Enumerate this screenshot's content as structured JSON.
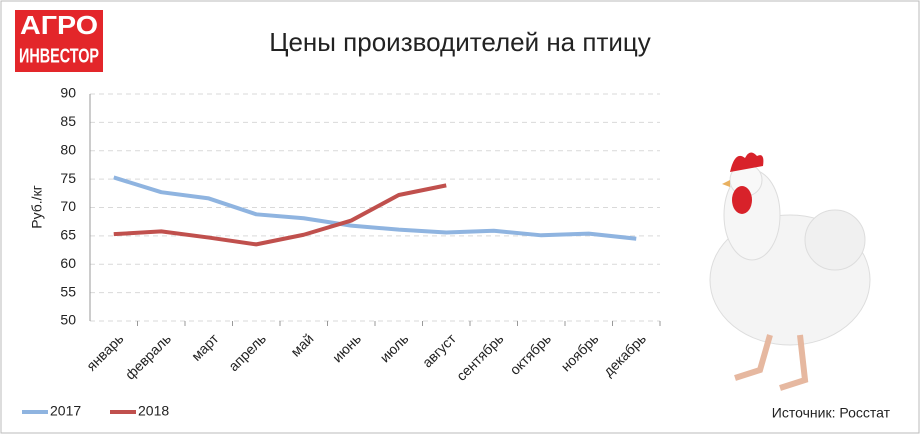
{
  "logo": [
    "АГРО",
    "ИНВЕСТОР"
  ],
  "source": "Источник: Росстат",
  "chart_data": {
    "type": "line",
    "title": "Цены производителей на птицу",
    "y_label": "Руб./кг",
    "categories": [
      "январь",
      "февраль",
      "март",
      "апрель",
      "май",
      "июнь",
      "июль",
      "август",
      "сентябрь",
      "октябрь",
      "ноябрь",
      "декабрь"
    ],
    "series": [
      {
        "name": "2017",
        "color": "#8fb4e0",
        "values": [
          75.3,
          72.7,
          71.6,
          68.8,
          68.1,
          66.8,
          66.1,
          65.6,
          65.9,
          65.1,
          65.4,
          64.5
        ]
      },
      {
        "name": "2018",
        "color": "#c0504d",
        "values": [
          65.3,
          65.8,
          64.7,
          63.5,
          65.2,
          67.7,
          72.2,
          73.9,
          null,
          null,
          null,
          null
        ]
      }
    ],
    "ylim": [
      50,
      90
    ],
    "yticks": [
      50,
      55,
      60,
      65,
      70,
      75,
      80,
      85,
      90
    ],
    "grid": true,
    "legend": "bottom-left"
  }
}
